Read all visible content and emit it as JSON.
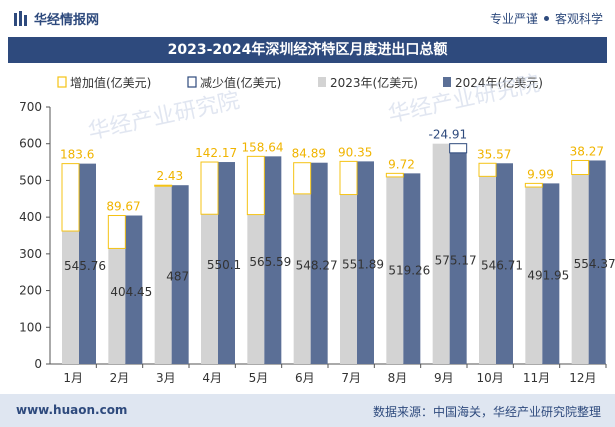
{
  "header": {
    "brand": "华经情报网",
    "slogan_left": "专业严谨",
    "slogan_right": "客观科学"
  },
  "title": "2023-2024年深圳经济特区月度进出口总额",
  "legend": {
    "increase": "增加值(亿美元)",
    "decrease": "减少值(亿美元)",
    "y2023": "2023年(亿美元)",
    "y2024": "2024年(亿美元)"
  },
  "watermarks": [
    "华经产业研究院",
    "华经产业研究院"
  ],
  "footer": {
    "website": "www.huaon.com",
    "source": "数据来源：中国海关，华经产业研究院整理"
  },
  "colors": {
    "brand": "#2e4a7d",
    "bar2023": "#d3d3d3",
    "bar2024": "#5b6f96",
    "increase": "#f5c314",
    "decrease": "#2e4a7d",
    "increase_label": "#f0b400"
  },
  "chart_data": {
    "type": "bar",
    "categories": [
      "1月",
      "2月",
      "3月",
      "4月",
      "5月",
      "6月",
      "7月",
      "8月",
      "9月",
      "10月",
      "11月",
      "12月"
    ],
    "series": [
      {
        "name": "2023年(亿美元)",
        "values": [
          362.16,
          314.78,
          484.57,
          407.93,
          406.95,
          463.38,
          461.54,
          509.54,
          600.08,
          511.14,
          481.96,
          516.1
        ]
      },
      {
        "name": "2024年(亿美元)",
        "values": [
          545.76,
          404.45,
          487,
          550.1,
          565.59,
          548.27,
          551.89,
          519.26,
          575.17,
          546.71,
          491.95,
          554.37
        ]
      }
    ],
    "change": {
      "labels": [
        "183.6",
        "89.67",
        "2.43",
        "142.17",
        "158.64",
        "84.89",
        "90.35",
        "9.72",
        "-24.91",
        "35.57",
        "9.99",
        "38.27"
      ],
      "values": [
        183.6,
        89.67,
        2.43,
        142.17,
        158.64,
        84.89,
        90.35,
        9.72,
        -24.91,
        35.57,
        9.99,
        38.27
      ]
    },
    "value_labels_2024": [
      "545.76",
      "404.45",
      "487",
      "550.1",
      "565.59",
      "548.27",
      "551.89",
      "519.26",
      "575.17",
      "546.71",
      "491.95",
      "554.37"
    ],
    "y_ticks": [
      0,
      100,
      200,
      300,
      400,
      500,
      600,
      700
    ],
    "ylim": [
      0,
      700
    ],
    "legend_position": "top",
    "grid": false
  }
}
